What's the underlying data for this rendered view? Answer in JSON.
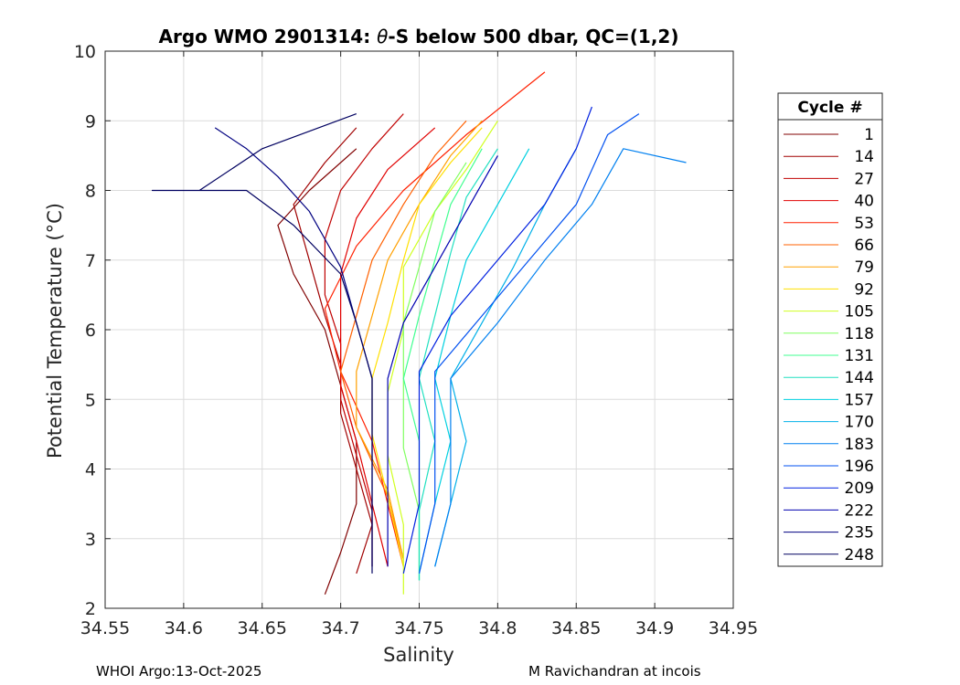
{
  "chart_data": {
    "type": "line",
    "title_prefix": "Argo WMO 2901314: ",
    "title_symbol": "θ",
    "title_suffix": "-S below 500 dbar,  QC=(1,2)",
    "xlabel": "Salinity",
    "ylabel": "Potential Temperature (°C)",
    "xlim": [
      34.55,
      34.95
    ],
    "ylim": [
      2,
      10
    ],
    "xticks": [
      34.55,
      34.6,
      34.65,
      34.7,
      34.75,
      34.8,
      34.85,
      34.9,
      34.95
    ],
    "xtick_labels": [
      "34.55",
      "34.6",
      "34.65",
      "34.7",
      "34.75",
      "34.8",
      "34.85",
      "34.9",
      "34.95"
    ],
    "yticks": [
      2,
      3,
      4,
      5,
      6,
      7,
      8,
      9,
      10
    ],
    "ytick_labels": [
      "2",
      "3",
      "4",
      "5",
      "6",
      "7",
      "8",
      "9",
      "10"
    ],
    "grid": true,
    "legend_title": "Cycle #",
    "legend_position": "outside-right",
    "series": [
      {
        "name": "1",
        "color": "#800000",
        "values": [
          [
            34.69,
            2.2
          ],
          [
            34.7,
            2.8
          ],
          [
            34.71,
            3.5
          ],
          [
            34.71,
            4.4
          ],
          [
            34.7,
            5.2
          ],
          [
            34.69,
            6.0
          ],
          [
            34.67,
            6.8
          ],
          [
            34.66,
            7.5
          ],
          [
            34.68,
            8.0
          ],
          [
            34.71,
            8.6
          ]
        ]
      },
      {
        "name": "14",
        "color": "#a00000",
        "values": [
          [
            34.71,
            2.5
          ],
          [
            34.72,
            3.2
          ],
          [
            34.71,
            4.0
          ],
          [
            34.7,
            4.8
          ],
          [
            34.7,
            5.5
          ],
          [
            34.69,
            6.2
          ],
          [
            34.68,
            7.0
          ],
          [
            34.67,
            7.8
          ],
          [
            34.69,
            8.4
          ],
          [
            34.71,
            8.9
          ]
        ]
      },
      {
        "name": "27",
        "color": "#c00000",
        "values": [
          [
            34.72,
            2.6
          ],
          [
            34.72,
            3.4
          ],
          [
            34.71,
            4.2
          ],
          [
            34.7,
            5.0
          ],
          [
            34.7,
            5.8
          ],
          [
            34.69,
            6.5
          ],
          [
            34.69,
            7.3
          ],
          [
            34.7,
            8.0
          ],
          [
            34.72,
            8.6
          ],
          [
            34.74,
            9.1
          ]
        ]
      },
      {
        "name": "40",
        "color": "#e00000",
        "values": [
          [
            34.73,
            2.6
          ],
          [
            34.72,
            3.5
          ],
          [
            34.71,
            4.4
          ],
          [
            34.7,
            5.2
          ],
          [
            34.7,
            6.0
          ],
          [
            34.7,
            6.8
          ],
          [
            34.71,
            7.6
          ],
          [
            34.73,
            8.3
          ],
          [
            34.76,
            8.9
          ]
        ]
      },
      {
        "name": "53",
        "color": "#ff2000",
        "values": [
          [
            34.74,
            2.6
          ],
          [
            34.73,
            3.5
          ],
          [
            34.72,
            4.4
          ],
          [
            34.7,
            5.4
          ],
          [
            34.69,
            6.3
          ],
          [
            34.71,
            7.2
          ],
          [
            34.74,
            8.0
          ],
          [
            34.78,
            8.8
          ],
          [
            34.83,
            9.7
          ]
        ]
      },
      {
        "name": "66",
        "color": "#ff6000",
        "values": [
          [
            34.74,
            2.7
          ],
          [
            34.73,
            3.6
          ],
          [
            34.71,
            4.6
          ],
          [
            34.7,
            5.4
          ],
          [
            34.71,
            6.2
          ],
          [
            34.72,
            7.0
          ],
          [
            34.74,
            7.8
          ],
          [
            34.76,
            8.5
          ],
          [
            34.78,
            9.0
          ]
        ]
      },
      {
        "name": "79",
        "color": "#ffa000",
        "values": [
          [
            34.74,
            2.7
          ],
          [
            34.73,
            3.7
          ],
          [
            34.71,
            4.6
          ],
          [
            34.71,
            5.4
          ],
          [
            34.72,
            6.2
          ],
          [
            34.73,
            7.0
          ],
          [
            34.75,
            7.8
          ],
          [
            34.77,
            8.5
          ],
          [
            34.79,
            9.0
          ]
        ]
      },
      {
        "name": "92",
        "color": "#ffe000",
        "values": [
          [
            34.74,
            2.6
          ],
          [
            34.73,
            3.6
          ],
          [
            34.72,
            4.5
          ],
          [
            34.72,
            5.3
          ],
          [
            34.73,
            6.1
          ],
          [
            34.74,
            7.0
          ],
          [
            34.75,
            7.8
          ],
          [
            34.77,
            8.4
          ],
          [
            34.79,
            8.9
          ]
        ]
      },
      {
        "name": "105",
        "color": "#d0ff20",
        "values": [
          [
            34.74,
            2.2
          ],
          [
            34.74,
            3.2
          ],
          [
            34.73,
            4.2
          ],
          [
            34.73,
            5.1
          ],
          [
            34.74,
            6.0
          ],
          [
            34.74,
            6.9
          ],
          [
            34.76,
            7.7
          ],
          [
            34.78,
            8.3
          ],
          [
            34.8,
            9.0
          ]
        ]
      },
      {
        "name": "118",
        "color": "#80ff60",
        "values": [
          [
            34.75,
            2.4
          ],
          [
            34.75,
            3.4
          ],
          [
            34.74,
            4.3
          ],
          [
            34.74,
            5.2
          ],
          [
            34.74,
            6.1
          ],
          [
            34.75,
            6.9
          ],
          [
            34.76,
            7.7
          ],
          [
            34.78,
            8.4
          ]
        ]
      },
      {
        "name": "131",
        "color": "#40ff90",
        "values": [
          [
            34.75,
            2.4
          ],
          [
            34.75,
            3.4
          ],
          [
            34.75,
            4.4
          ],
          [
            34.74,
            5.3
          ],
          [
            34.75,
            6.2
          ],
          [
            34.76,
            7.0
          ],
          [
            34.77,
            7.8
          ],
          [
            34.79,
            8.6
          ]
        ]
      },
      {
        "name": "144",
        "color": "#20e0c0",
        "values": [
          [
            34.75,
            2.4
          ],
          [
            34.75,
            3.4
          ],
          [
            34.76,
            4.4
          ],
          [
            34.75,
            5.3
          ],
          [
            34.76,
            6.2
          ],
          [
            34.77,
            7.1
          ],
          [
            34.78,
            7.9
          ],
          [
            34.8,
            8.6
          ]
        ]
      },
      {
        "name": "157",
        "color": "#00d0e0",
        "values": [
          [
            34.75,
            2.5
          ],
          [
            34.76,
            3.5
          ],
          [
            34.77,
            4.4
          ],
          [
            34.76,
            5.3
          ],
          [
            34.77,
            6.2
          ],
          [
            34.78,
            7.0
          ],
          [
            34.8,
            7.8
          ],
          [
            34.82,
            8.6
          ]
        ]
      },
      {
        "name": "170",
        "color": "#00b0e8",
        "values": [
          [
            34.76,
            2.6
          ],
          [
            34.77,
            3.5
          ],
          [
            34.78,
            4.4
          ],
          [
            34.77,
            5.3
          ],
          [
            34.79,
            6.1
          ],
          [
            34.81,
            6.9
          ],
          [
            34.83,
            7.8
          ],
          [
            34.85,
            8.6
          ]
        ]
      },
      {
        "name": "183",
        "color": "#0080f0",
        "values": [
          [
            34.76,
            2.6
          ],
          [
            34.77,
            3.5
          ],
          [
            34.77,
            4.4
          ],
          [
            34.77,
            5.3
          ],
          [
            34.8,
            6.1
          ],
          [
            34.83,
            7.0
          ],
          [
            34.86,
            7.8
          ],
          [
            34.88,
            8.6
          ],
          [
            34.92,
            8.4
          ]
        ]
      },
      {
        "name": "196",
        "color": "#0050f0",
        "values": [
          [
            34.75,
            2.5
          ],
          [
            34.76,
            3.5
          ],
          [
            34.76,
            4.4
          ],
          [
            34.76,
            5.4
          ],
          [
            34.79,
            6.2
          ],
          [
            34.82,
            7.0
          ],
          [
            34.85,
            7.8
          ],
          [
            34.87,
            8.8
          ],
          [
            34.89,
            9.1
          ]
        ]
      },
      {
        "name": "209",
        "color": "#0020e0",
        "values": [
          [
            34.74,
            2.5
          ],
          [
            34.75,
            3.5
          ],
          [
            34.75,
            4.4
          ],
          [
            34.75,
            5.4
          ],
          [
            34.77,
            6.2
          ],
          [
            34.8,
            7.0
          ],
          [
            34.83,
            7.8
          ],
          [
            34.85,
            8.6
          ],
          [
            34.86,
            9.2
          ]
        ]
      },
      {
        "name": "222",
        "color": "#0000b0",
        "values": [
          [
            34.73,
            2.6
          ],
          [
            34.73,
            3.5
          ],
          [
            34.73,
            4.4
          ],
          [
            34.73,
            5.3
          ],
          [
            34.74,
            6.1
          ],
          [
            34.76,
            6.9
          ],
          [
            34.78,
            7.7
          ],
          [
            34.8,
            8.5
          ]
        ]
      },
      {
        "name": "235",
        "color": "#000080",
        "values": [
          [
            34.72,
            2.6
          ],
          [
            34.72,
            3.5
          ],
          [
            34.72,
            4.4
          ],
          [
            34.72,
            5.3
          ],
          [
            34.71,
            6.1
          ],
          [
            34.7,
            6.9
          ],
          [
            34.68,
            7.7
          ],
          [
            34.66,
            8.2
          ],
          [
            34.64,
            8.6
          ],
          [
            34.62,
            8.9
          ]
        ]
      },
      {
        "name": "248",
        "color": "#000060",
        "values": [
          [
            34.72,
            2.5
          ],
          [
            34.72,
            3.4
          ],
          [
            34.72,
            4.4
          ],
          [
            34.72,
            5.3
          ],
          [
            34.71,
            6.1
          ],
          [
            34.7,
            6.8
          ],
          [
            34.67,
            7.5
          ],
          [
            34.64,
            8.0
          ],
          [
            34.58,
            8.0
          ],
          [
            34.61,
            8.0
          ],
          [
            34.65,
            8.6
          ],
          [
            34.71,
            9.1
          ]
        ]
      }
    ]
  },
  "footer": {
    "left": "WHOI Argo:13-Oct-2025",
    "right": "M Ravichandran at incois"
  }
}
